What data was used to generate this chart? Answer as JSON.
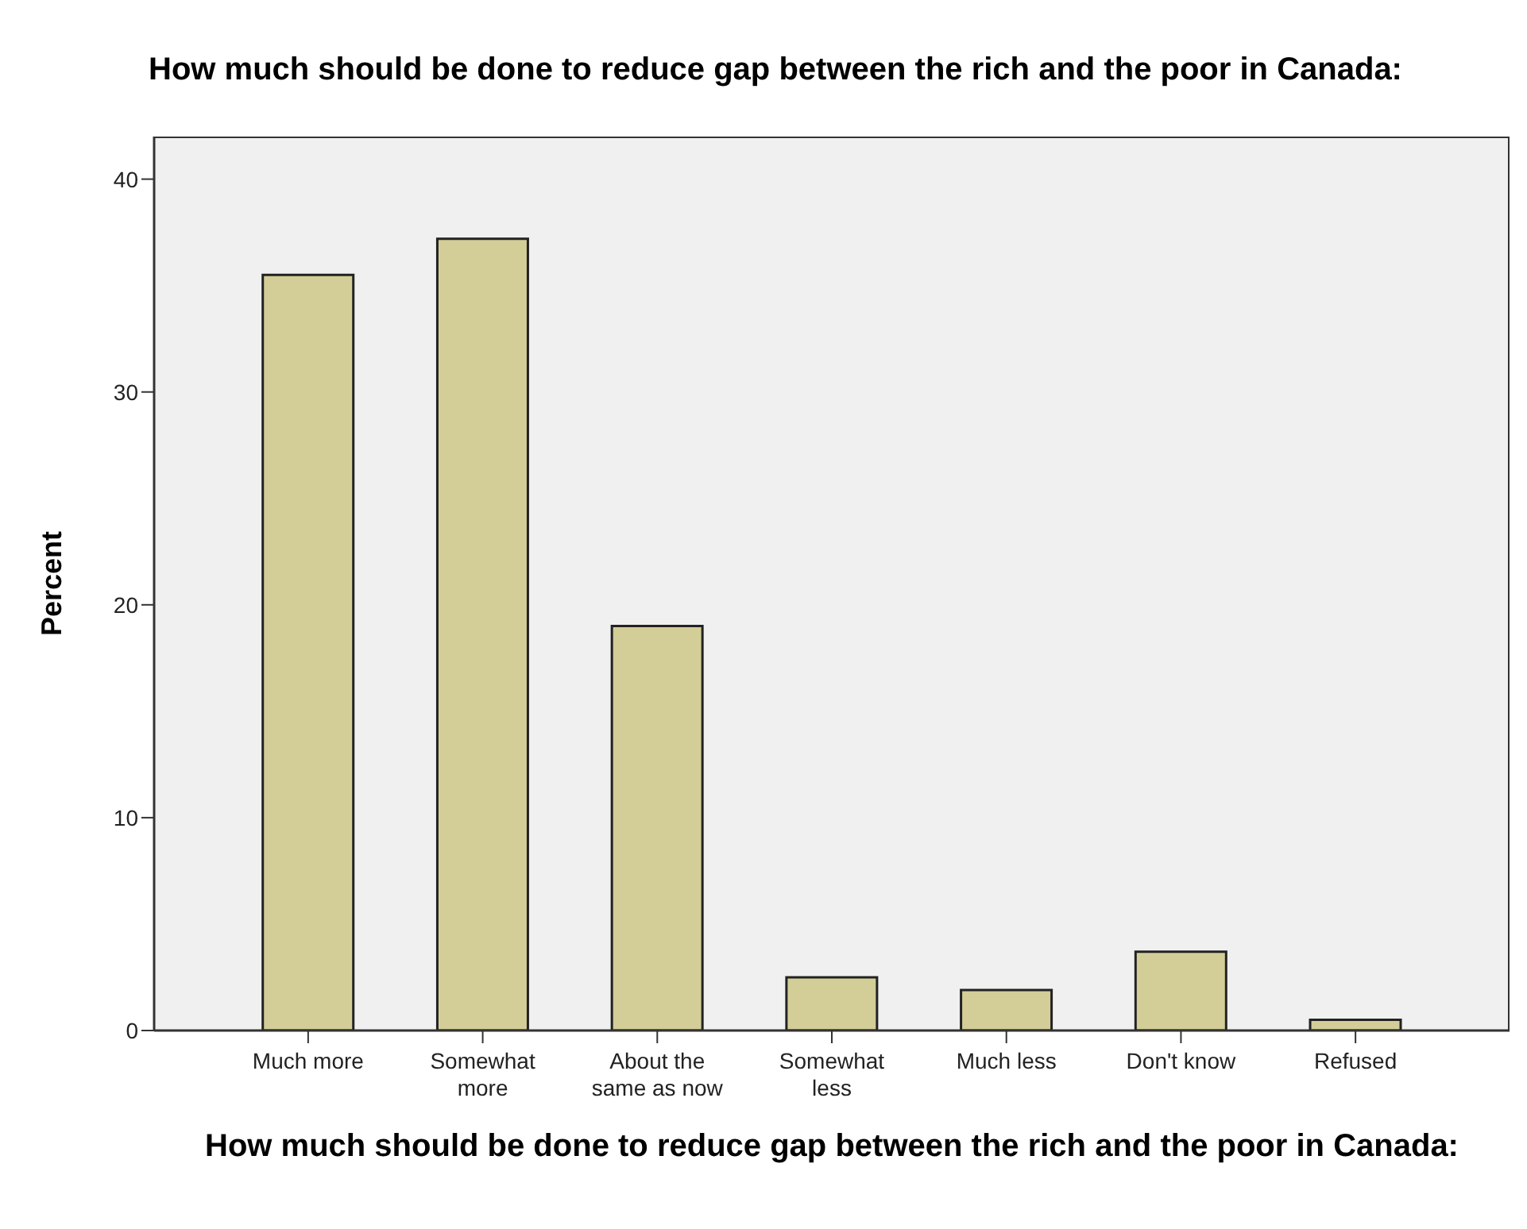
{
  "chart_data": {
    "type": "bar",
    "title": "How much should be done to reduce gap between the rich and the poor in Canada:",
    "xlabel": "How much should be done to reduce gap between the rich and the poor in Canada:",
    "ylabel": "Percent",
    "categories": [
      "Much more",
      "Somewhat more",
      "About the same as now",
      "Somewhat less",
      "Much less",
      "Don't know",
      "Refused"
    ],
    "values": [
      35.5,
      37.2,
      19.0,
      2.5,
      1.9,
      3.7,
      0.5
    ],
    "color": "#d3ce97",
    "ylim": [
      0,
      42
    ],
    "yticks": [
      0,
      10,
      20,
      30,
      40
    ],
    "grid": false,
    "legend": false
  }
}
